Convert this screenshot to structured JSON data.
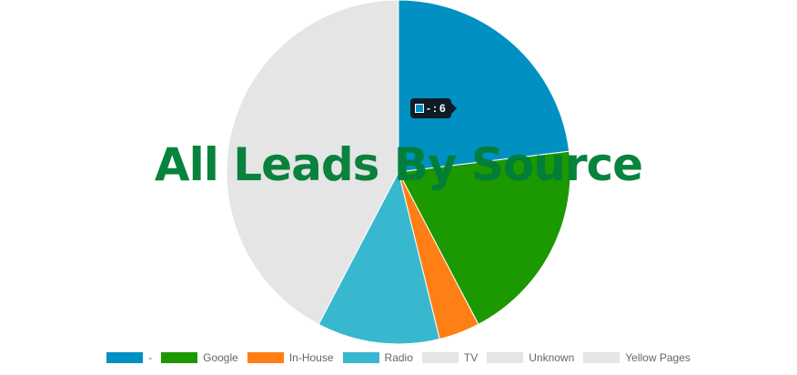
{
  "chart_data": {
    "type": "pie",
    "title": "All Leads By Source",
    "categories": [
      "-",
      "Google",
      "In-House",
      "Radio",
      "TV",
      "Unknown",
      "Yellow Pages"
    ],
    "values": [
      6,
      5,
      1,
      3,
      0,
      0,
      11
    ],
    "colors": [
      "#0090c1",
      "#1c9800",
      "#ff7f14",
      "#38b8cf",
      "#e5e5e5",
      "#e5e5e5",
      "#e5e5e5"
    ],
    "legend_position": "bottom"
  },
  "tooltip": {
    "label": "-",
    "value": "6"
  }
}
